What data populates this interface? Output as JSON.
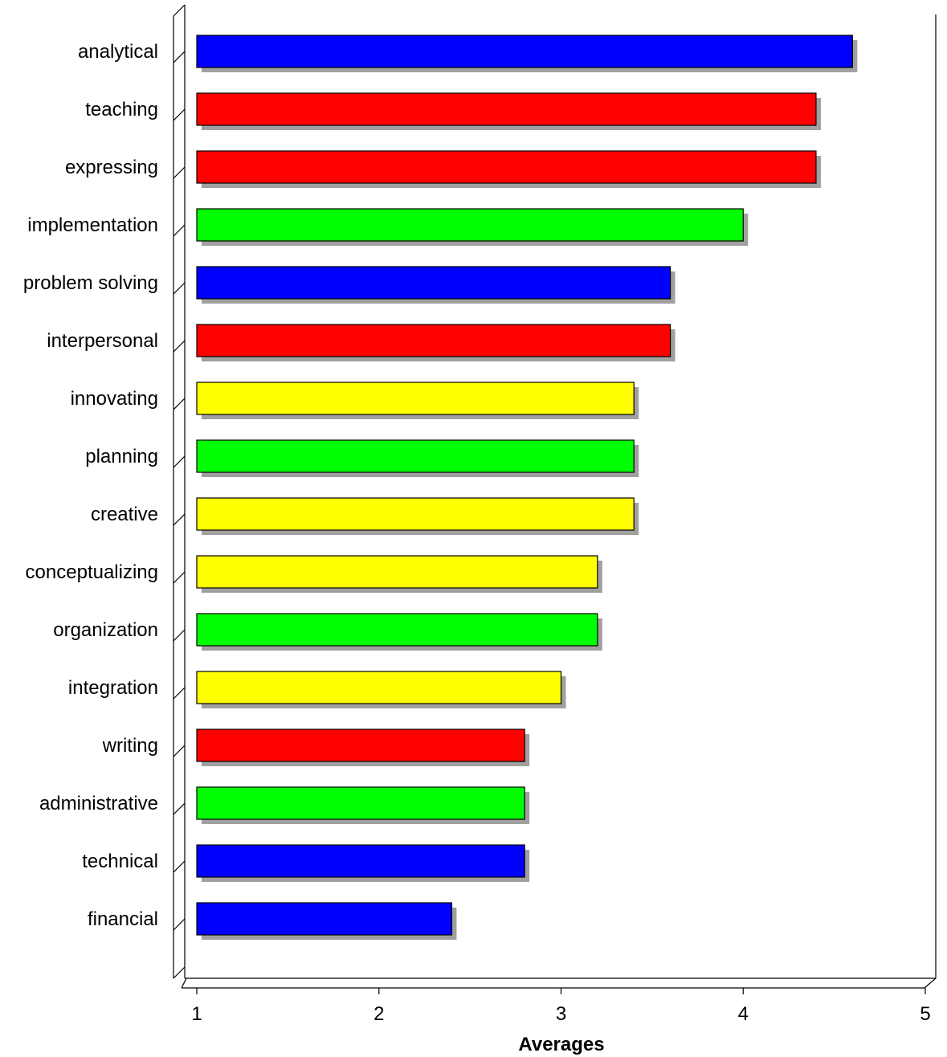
{
  "chart_data": {
    "type": "bar",
    "orientation": "horizontal",
    "categories": [
      "analytical",
      "teaching",
      "expressing",
      "implementation",
      "problem solving",
      "interpersonal",
      "innovating",
      "planning",
      "creative",
      "conceptualizing",
      "organization",
      "integration",
      "writing",
      "administrative",
      "technical",
      "financial"
    ],
    "values": [
      4.6,
      4.4,
      4.4,
      4.0,
      3.6,
      3.6,
      3.4,
      3.4,
      3.4,
      3.2,
      3.2,
      3.0,
      2.8,
      2.8,
      2.8,
      2.4
    ],
    "bar_colors": [
      "#0000ff",
      "#ff0000",
      "#ff0000",
      "#00ff00",
      "#0000ff",
      "#ff0000",
      "#ffff00",
      "#00ff00",
      "#ffff00",
      "#ffff00",
      "#00ff00",
      "#ffff00",
      "#ff0000",
      "#00ff00",
      "#0000ff",
      "#0000ff"
    ],
    "shadow_color": "#a0a0a0",
    "xlabel": "Averages",
    "ylabel": "",
    "title": "",
    "xlim": [
      1,
      5
    ],
    "xticks": [
      "1",
      "2",
      "3",
      "4",
      "5"
    ],
    "grid": false,
    "legend": "none"
  }
}
